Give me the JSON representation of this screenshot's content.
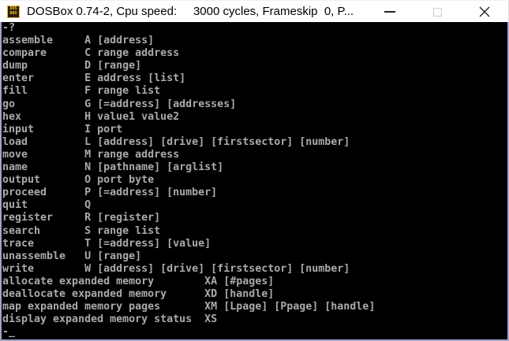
{
  "window": {
    "title": "DOSBox 0.74-2, Cpu speed:     3000 cycles, Frameskip  0, P...",
    "icon": {
      "name": "dosbox-logo-icon",
      "text_top": "DOS",
      "text_bottom": "BOX"
    },
    "controls": {
      "minimize_icon": "minimize-dash",
      "maximize_icon": "maximize-square-disabled",
      "close_icon": "close-x"
    }
  },
  "terminal": {
    "columns": 80,
    "rows": 25,
    "lines": [
      "-?",
      "assemble     A [address]",
      "compare      C range address",
      "dump         D [range]",
      "enter        E address [list]",
      "fill         F range list",
      "go           G [=address] [addresses]",
      "hex          H value1 value2",
      "input        I port",
      "load         L [address] [drive] [firstsector] [number]",
      "move         M range address",
      "name         N [pathname] [arglist]",
      "output       O port byte",
      "proceed      P [=address] [number]",
      "quit         Q",
      "register     R [register]",
      "search       S range list",
      "trace        T [=address] [value]",
      "unassemble   U [range]",
      "write        W [address] [drive] [firstsector] [number]",
      "allocate expanded memory        XA [#pages]",
      "deallocate expanded memory      XD [handle]",
      "map expanded memory pages       XM [Lpage] [Ppage] [handle]",
      "display expanded memory status  XS"
    ],
    "prompt": "-",
    "cursor": "_"
  },
  "colors": {
    "titlebar_bg": "#ffffff",
    "title_text": "#000000",
    "terminal_bg": "#000000",
    "terminal_text": "#aaaaaa",
    "window_border": "#a2a2c8",
    "icon_border": "#e8b43a",
    "icon_bg": "#2a1d05",
    "icon_text": "#f5c33c"
  }
}
